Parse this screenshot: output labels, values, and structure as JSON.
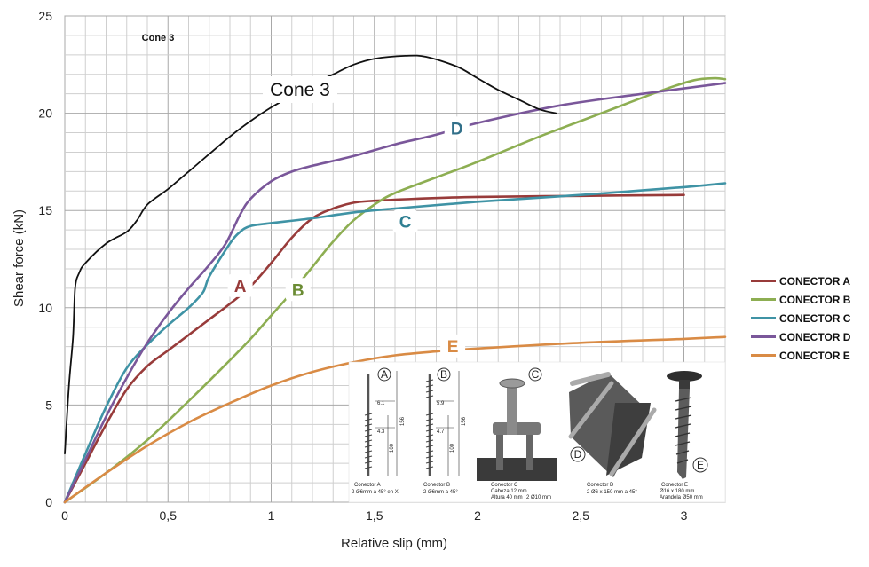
{
  "chart_data": {
    "type": "line",
    "xlabel": "Relative slip (mm)",
    "ylabel": "Shear force (kN)",
    "xlim": [
      0,
      3.2
    ],
    "ylim": [
      0,
      25
    ],
    "xticks": [
      0,
      0.5,
      1,
      1.5,
      2,
      2.5,
      3
    ],
    "xtick_labels": [
      "0",
      "0,5",
      "1",
      "1,5",
      "2",
      "2,5",
      "3"
    ],
    "yticks": [
      0,
      5,
      10,
      15,
      20,
      25
    ],
    "ytick_labels": [
      "0",
      "5",
      "10",
      "15",
      "20",
      "25"
    ],
    "grid": true,
    "legend_position": "right",
    "annotations": {
      "small_top": "Cone 3",
      "curve": "Cone 3"
    },
    "series": [
      {
        "name": "CONECTOR A",
        "label": "A",
        "color": "#983b3a",
        "label_at": [
          0.85,
          11.0
        ],
        "label_color": "#983b3a",
        "points": [
          [
            0,
            0
          ],
          [
            0.1,
            2
          ],
          [
            0.2,
            4
          ],
          [
            0.3,
            5.8
          ],
          [
            0.4,
            7
          ],
          [
            0.5,
            7.8
          ],
          [
            0.6,
            8.6
          ],
          [
            0.7,
            9.4
          ],
          [
            0.8,
            10.2
          ],
          [
            0.9,
            11.1
          ],
          [
            1.0,
            12.3
          ],
          [
            1.1,
            13.6
          ],
          [
            1.2,
            14.6
          ],
          [
            1.3,
            15.1
          ],
          [
            1.4,
            15.4
          ],
          [
            1.5,
            15.5
          ],
          [
            1.7,
            15.6
          ],
          [
            2.0,
            15.7
          ],
          [
            2.5,
            15.75
          ],
          [
            3.0,
            15.8
          ]
        ]
      },
      {
        "name": "CONECTOR B",
        "label": "B",
        "color": "#8dae52",
        "label_at": [
          1.13,
          10.8
        ],
        "label_color": "#6b8c34",
        "points": [
          [
            0,
            0
          ],
          [
            0.2,
            1.5
          ],
          [
            0.4,
            3.2
          ],
          [
            0.6,
            5.2
          ],
          [
            0.8,
            7.3
          ],
          [
            0.9,
            8.4
          ],
          [
            1.0,
            9.6
          ],
          [
            1.1,
            10.8
          ],
          [
            1.2,
            12.1
          ],
          [
            1.3,
            13.4
          ],
          [
            1.4,
            14.5
          ],
          [
            1.5,
            15.3
          ],
          [
            1.6,
            15.9
          ],
          [
            1.8,
            16.7
          ],
          [
            2.0,
            17.5
          ],
          [
            2.3,
            18.8
          ],
          [
            2.6,
            20.0
          ],
          [
            2.9,
            21.2
          ],
          [
            3.05,
            21.7
          ],
          [
            3.15,
            21.8
          ],
          [
            3.2,
            21.75
          ]
        ]
      },
      {
        "name": "CONECTOR C",
        "label": "C",
        "color": "#3f93a5",
        "label_at": [
          1.65,
          14.3
        ],
        "label_color": "#2f7f92",
        "points": [
          [
            0,
            0
          ],
          [
            0.1,
            2.5
          ],
          [
            0.2,
            4.9
          ],
          [
            0.3,
            6.9
          ],
          [
            0.4,
            8.1
          ],
          [
            0.5,
            9.1
          ],
          [
            0.6,
            10.0
          ],
          [
            0.67,
            10.8
          ],
          [
            0.7,
            11.6
          ],
          [
            0.8,
            13.3
          ],
          [
            0.85,
            13.9
          ],
          [
            0.9,
            14.2
          ],
          [
            1.0,
            14.35
          ],
          [
            1.2,
            14.6
          ],
          [
            1.4,
            14.9
          ],
          [
            1.6,
            15.1
          ],
          [
            2.0,
            15.45
          ],
          [
            2.5,
            15.8
          ],
          [
            3.0,
            16.2
          ],
          [
            3.2,
            16.4
          ]
        ]
      },
      {
        "name": "CONECTOR D",
        "label": "D",
        "color": "#7a579a",
        "label_at": [
          1.9,
          19.1
        ],
        "label_color": "#32708a",
        "points": [
          [
            0,
            0
          ],
          [
            0.1,
            2.2
          ],
          [
            0.2,
            4.4
          ],
          [
            0.3,
            6.4
          ],
          [
            0.4,
            8.2
          ],
          [
            0.5,
            9.7
          ],
          [
            0.6,
            11.0
          ],
          [
            0.7,
            12.2
          ],
          [
            0.78,
            13.3
          ],
          [
            0.85,
            14.8
          ],
          [
            0.9,
            15.6
          ],
          [
            1.0,
            16.5
          ],
          [
            1.1,
            17.0
          ],
          [
            1.2,
            17.3
          ],
          [
            1.4,
            17.8
          ],
          [
            1.6,
            18.4
          ],
          [
            1.8,
            18.9
          ],
          [
            2.0,
            19.5
          ],
          [
            2.4,
            20.4
          ],
          [
            2.8,
            21.0
          ],
          [
            3.2,
            21.55
          ]
        ]
      },
      {
        "name": "CONECTOR E",
        "label": "E",
        "color": "#d98b45",
        "label_at": [
          1.88,
          7.9
        ],
        "label_color": "#d98b45",
        "points": [
          [
            0,
            0
          ],
          [
            0.2,
            1.5
          ],
          [
            0.4,
            2.9
          ],
          [
            0.6,
            4.1
          ],
          [
            0.8,
            5.1
          ],
          [
            1.0,
            6.0
          ],
          [
            1.2,
            6.7
          ],
          [
            1.4,
            7.2
          ],
          [
            1.6,
            7.55
          ],
          [
            1.8,
            7.75
          ],
          [
            2.0,
            7.9
          ],
          [
            2.5,
            8.2
          ],
          [
            3.0,
            8.4
          ],
          [
            3.2,
            8.5
          ]
        ]
      },
      {
        "name": "Cone 3",
        "color": "#111111",
        "points": [
          [
            0,
            2.5
          ],
          [
            0.02,
            6
          ],
          [
            0.04,
            8.5
          ],
          [
            0.05,
            11
          ],
          [
            0.07,
            11.8
          ],
          [
            0.1,
            12.3
          ],
          [
            0.2,
            13.3
          ],
          [
            0.3,
            13.9
          ],
          [
            0.35,
            14.5
          ],
          [
            0.4,
            15.3
          ],
          [
            0.5,
            16.1
          ],
          [
            0.6,
            17.0
          ],
          [
            0.7,
            17.9
          ],
          [
            0.8,
            18.8
          ],
          [
            0.9,
            19.6
          ],
          [
            1.0,
            20.3
          ],
          [
            1.1,
            20.9
          ],
          [
            1.2,
            21.5
          ],
          [
            1.3,
            22.0
          ],
          [
            1.4,
            22.5
          ],
          [
            1.5,
            22.8
          ],
          [
            1.65,
            22.95
          ],
          [
            1.75,
            22.9
          ],
          [
            1.9,
            22.4
          ],
          [
            2.0,
            21.8
          ],
          [
            2.1,
            21.2
          ],
          [
            2.2,
            20.7
          ],
          [
            2.3,
            20.2
          ],
          [
            2.38,
            20.0
          ]
        ]
      }
    ]
  },
  "legend": [
    {
      "label": "CONECTOR A",
      "color": "#983b3a"
    },
    {
      "label": "CONECTOR B",
      "color": "#8dae52"
    },
    {
      "label": "CONECTOR C",
      "color": "#3f93a5"
    },
    {
      "label": "CONECTOR D",
      "color": "#7a579a"
    },
    {
      "label": "CONECTOR E",
      "color": "#d98b45"
    }
  ],
  "inset": {
    "panels": [
      {
        "letter": "A",
        "caption1": "Conector A",
        "caption2": "2 Ø6mm a 45° en X",
        "dims": [
          "6.1",
          "4.3",
          "156",
          "100"
        ]
      },
      {
        "letter": "B",
        "caption1": "Conector B",
        "caption2": "2 Ø6mm a 45°",
        "dims": [
          "5.9",
          "4.7",
          "156",
          "100"
        ]
      },
      {
        "letter": "C",
        "caption1": "Conector C",
        "caption2": "Cabeza 12 mm",
        "caption3": "Altura 40 mm",
        "caption4": "2 Ø10 mm"
      },
      {
        "letter": "D",
        "caption1": "Conector D",
        "caption2": "2 Ø6 x 150 mm a 45°"
      },
      {
        "letter": "E",
        "caption1": "Conector E",
        "caption2": "Ø16 x 180 mm",
        "caption3": "Arandela Ø50 mm"
      }
    ]
  }
}
